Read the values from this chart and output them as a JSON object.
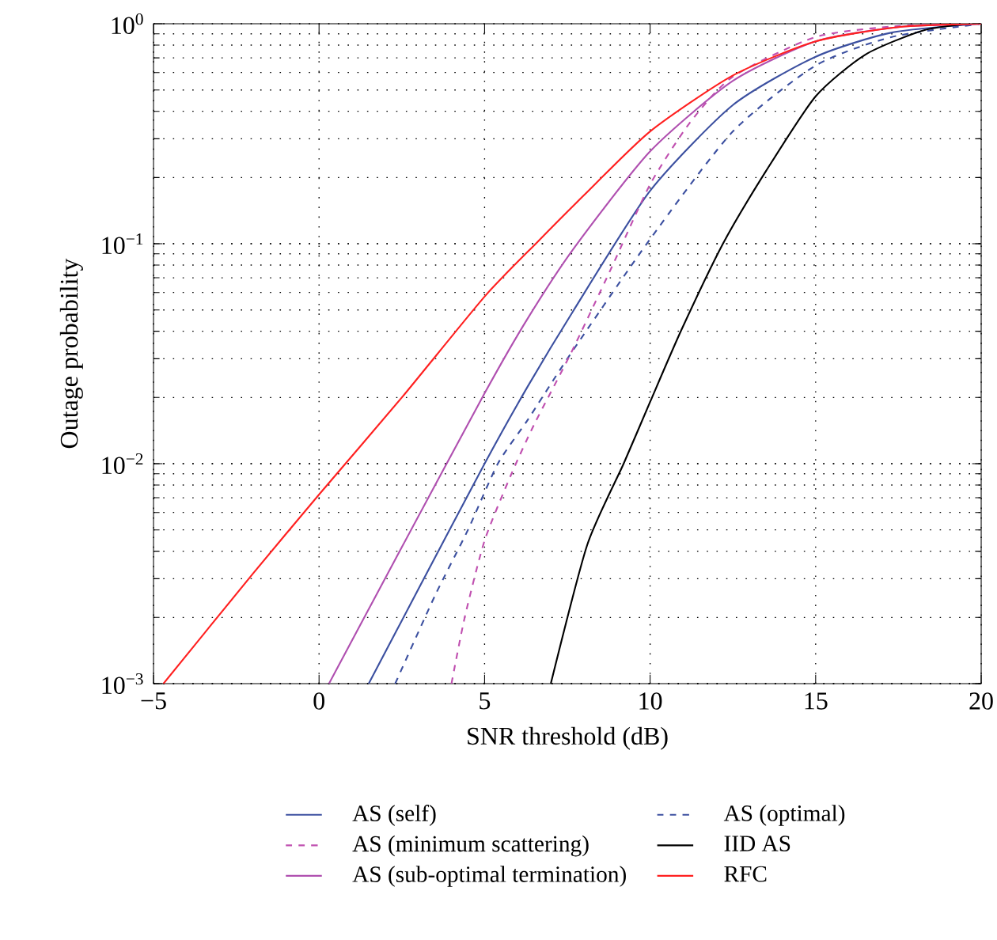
{
  "chart_data": {
    "type": "line",
    "xlabel": "SNR threshold (dB)",
    "ylabel": "Outage probability",
    "log": "y",
    "grid": true,
    "legend": "bottom",
    "xlim": [
      -5,
      20
    ],
    "xticks": [
      {
        "value": -5,
        "label": "−5"
      },
      0,
      5,
      10,
      15,
      20
    ],
    "ylim": [
      0.001,
      1
    ],
    "yticks": [
      {
        "value": 0.001,
        "label": "10$^{−3}$"
      },
      {
        "value": 0.01,
        "label": "10$^{−2}$"
      },
      {
        "value": 0.1,
        "label": "10$^{−1}$"
      },
      {
        "value": 1,
        "label": "10$^{0}$"
      }
    ],
    "series": [
      {
        "name": "AS (self)",
        "color": "#3c50a0",
        "line_style": "solid",
        "x": [
          1.5,
          3,
          5,
          6.3,
          7.7,
          10,
          12.5,
          15,
          17.3,
          20
        ],
        "values": [
          0.001,
          0.00269,
          0.01,
          0.0224,
          0.0501,
          0.174,
          0.427,
          0.708,
          0.912,
          1
        ]
      },
      {
        "name": "AS (optimal)",
        "color": "#3c50a0",
        "line_style": "dashed",
        "x": [
          2.3,
          3.5,
          4.5,
          5.4,
          6.3,
          7.6,
          10,
          12.5,
          15,
          17.3,
          20
        ],
        "values": [
          0.001,
          0.00251,
          0.00501,
          0.01,
          0.0158,
          0.0316,
          0.105,
          0.324,
          0.646,
          0.871,
          1
        ]
      },
      {
        "name": "AS (minimum scattering)",
        "color": "#c050b0",
        "line_style": "dashed",
        "x": [
          4.0,
          4.4,
          5,
          5.8,
          6.5,
          7.6,
          8.8,
          10,
          11.2,
          12.5,
          15,
          17.5,
          20
        ],
        "values": [
          0.001,
          0.002,
          0.00447,
          0.00891,
          0.0151,
          0.0316,
          0.0759,
          0.186,
          0.355,
          0.575,
          0.871,
          0.977,
          1
        ]
      },
      {
        "name": "IID AS",
        "color": "#000000",
        "line_style": "solid",
        "x": [
          7,
          8.1,
          9.2,
          10,
          10.95,
          12.2,
          13.5,
          15,
          16.5,
          18.25,
          19.7
        ],
        "values": [
          0.001,
          0.00427,
          0.01,
          0.0191,
          0.0407,
          0.1,
          0.214,
          0.468,
          0.724,
          0.933,
          1
        ]
      },
      {
        "name": "AS (sub-optimal termination)",
        "color": "#b050b0",
        "line_style": "solid",
        "x": [
          0.3,
          2.5,
          5,
          6.3,
          7.7,
          10,
          12.5,
          15,
          17.5,
          20
        ],
        "values": [
          0.001,
          0.00417,
          0.0209,
          0.0457,
          0.0955,
          0.263,
          0.55,
          0.832,
          0.966,
          1
        ]
      },
      {
        "name": "RFC",
        "color": "#ff2020",
        "line_style": "solid",
        "x": [
          -4.7,
          -2,
          0,
          2.5,
          5,
          6.6,
          8,
          10,
          12.5,
          15,
          17.5,
          20
        ],
        "values": [
          0.001,
          0.00316,
          0.00724,
          0.02,
          0.0575,
          0.102,
          0.166,
          0.324,
          0.582,
          0.832,
          0.966,
          1
        ]
      }
    ]
  }
}
